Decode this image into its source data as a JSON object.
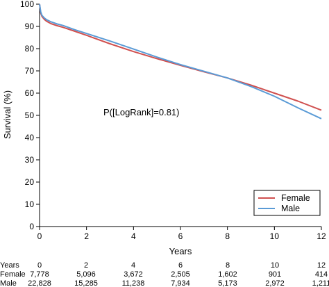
{
  "chart_data": {
    "type": "line",
    "xlabel": "Years",
    "ylabel": "Survival (%)",
    "xlim": [
      0,
      12
    ],
    "ylim": [
      0,
      100
    ],
    "xticks": [
      0,
      2,
      4,
      6,
      8,
      10,
      12
    ],
    "yticks": [
      0,
      10,
      20,
      30,
      40,
      50,
      60,
      70,
      80,
      90,
      100
    ],
    "grid": false,
    "legend_position": "bottom-right",
    "annotation": "P([LogRank]=0.81)",
    "series": [
      {
        "name": "Female",
        "color": "#d0504f",
        "x": [
          0,
          0.05,
          0.1,
          0.2,
          0.3,
          0.5,
          0.75,
          1,
          1.5,
          2,
          3,
          4,
          5,
          6,
          7,
          8,
          9,
          10,
          11,
          12
        ],
        "y": [
          100,
          96,
          94.5,
          93.2,
          92.3,
          91.2,
          90.3,
          89.6,
          87.8,
          86,
          82.2,
          78.7,
          75.5,
          72.5,
          69.6,
          66.8,
          63.6,
          60,
          56.4,
          52.3
        ]
      },
      {
        "name": "Male",
        "color": "#5a9bd6",
        "x": [
          0,
          0.05,
          0.1,
          0.2,
          0.3,
          0.5,
          0.75,
          1,
          1.5,
          2,
          3,
          4,
          5,
          6,
          7,
          8,
          9,
          10,
          11,
          12
        ],
        "y": [
          100,
          96.5,
          95,
          93.8,
          93,
          92,
          91.1,
          90.4,
          88.5,
          86.8,
          83.4,
          79.8,
          76.2,
          72.8,
          69.8,
          66.8,
          63,
          58.6,
          53.4,
          48.5
        ]
      }
    ],
    "risk_table": {
      "header_label": "Years",
      "header_values": [
        "0",
        "2",
        "4",
        "6",
        "8",
        "10",
        "12"
      ],
      "rows": [
        {
          "label": "Female",
          "values": [
            "7,778",
            "5,096",
            "3,672",
            "2,505",
            "1,602",
            "901",
            "414"
          ]
        },
        {
          "label": "Male",
          "values": [
            "22,828",
            "15,285",
            "11,238",
            "7,934",
            "5,173",
            "2,972",
            "1,211"
          ]
        }
      ]
    }
  }
}
